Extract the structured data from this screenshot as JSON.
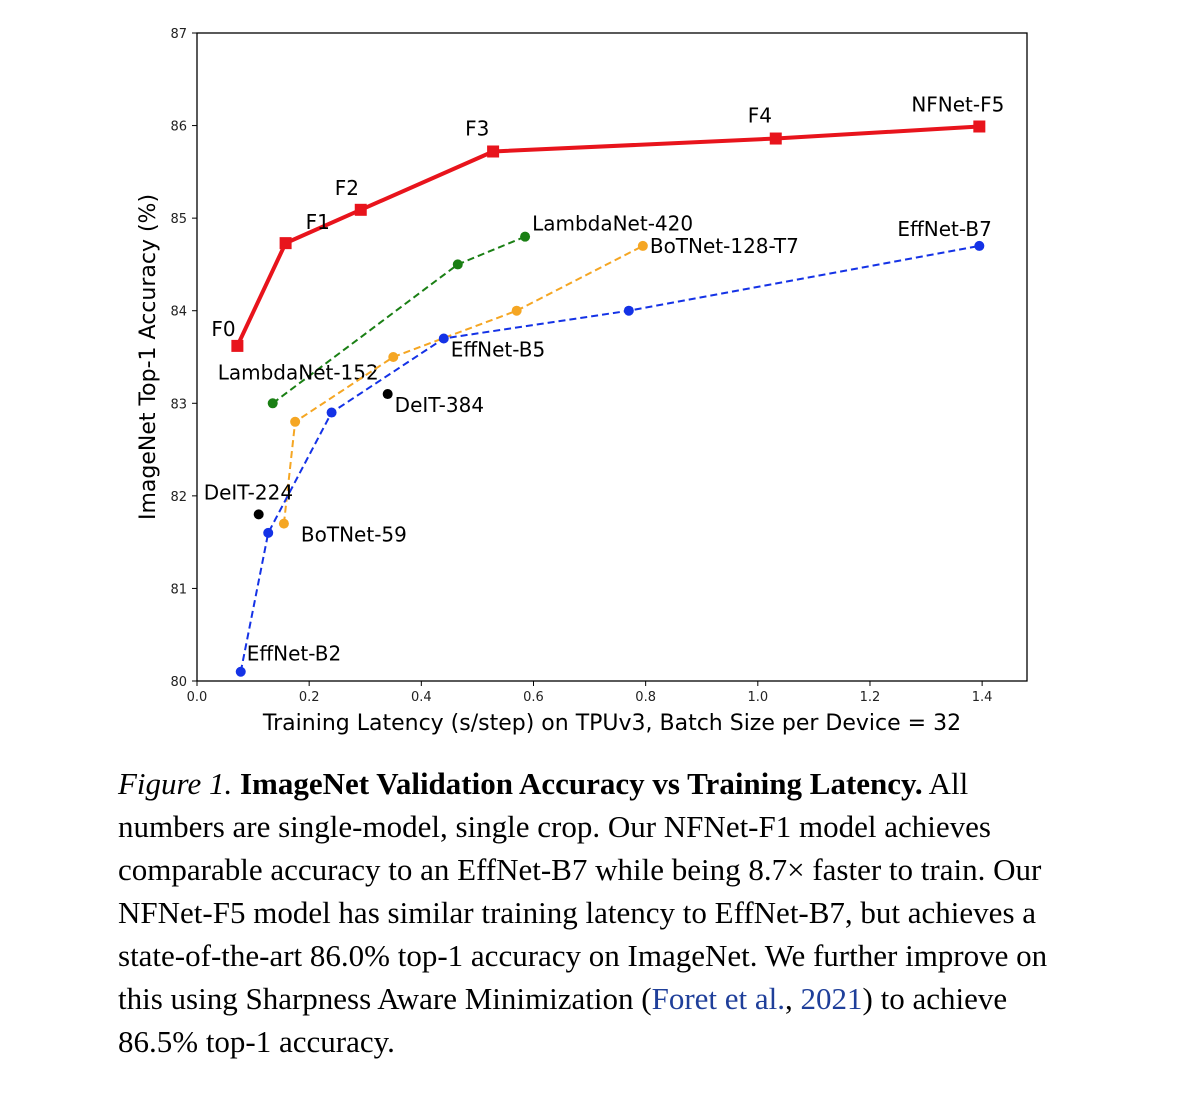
{
  "chart_data": {
    "type": "line",
    "xlabel": "Training Latency (s/step) on TPUv3, Batch Size per Device = 32",
    "ylabel": "ImageNet Top-1 Accuracy (%)",
    "xlim": [
      0.0,
      1.48
    ],
    "ylim": [
      80,
      87
    ],
    "x_ticks": [
      "0.0",
      "0.2",
      "0.4",
      "0.6",
      "0.8",
      "1.0",
      "1.2",
      "1.4"
    ],
    "y_ticks": [
      "80",
      "81",
      "82",
      "83",
      "84",
      "85",
      "86",
      "87"
    ],
    "grid": false,
    "series": [
      {
        "color": "#e8141c",
        "line_style": "solid",
        "marker": "square",
        "points": [
          {
            "x": 0.072,
            "y": 83.62,
            "label": "F0"
          },
          {
            "x": 0.158,
            "y": 84.73,
            "label": "F1"
          },
          {
            "x": 0.292,
            "y": 85.09,
            "label": "F2"
          },
          {
            "x": 0.528,
            "y": 85.72,
            "label": "F3"
          },
          {
            "x": 1.032,
            "y": 85.86,
            "label": "F4"
          },
          {
            "x": 1.395,
            "y": 85.99,
            "label": "NFNet-F5"
          }
        ]
      },
      {
        "color": "#1a7f14",
        "line_style": "dashed",
        "marker": "circle",
        "points": [
          {
            "x": 0.135,
            "y": 83.0,
            "label": "LambdaNet-152"
          },
          {
            "x": 0.465,
            "y": 84.5,
            "label": ""
          },
          {
            "x": 0.585,
            "y": 84.8,
            "label": "LambdaNet-420"
          }
        ]
      },
      {
        "color": "#f5a623",
        "line_style": "dashed",
        "marker": "circle",
        "points": [
          {
            "x": 0.155,
            "y": 81.7,
            "label": "BoTNet-59"
          },
          {
            "x": 0.175,
            "y": 82.8,
            "label": ""
          },
          {
            "x": 0.35,
            "y": 83.5,
            "label": ""
          },
          {
            "x": 0.57,
            "y": 84.0,
            "label": ""
          },
          {
            "x": 0.795,
            "y": 84.7,
            "label": "BoTNet-128-T7"
          }
        ]
      },
      {
        "color": "#1432e6",
        "line_style": "dashed",
        "marker": "circle",
        "points": [
          {
            "x": 0.078,
            "y": 80.1,
            "label": "EffNet-B2"
          },
          {
            "x": 0.127,
            "y": 81.6,
            "label": ""
          },
          {
            "x": 0.24,
            "y": 82.9,
            "label": ""
          },
          {
            "x": 0.44,
            "y": 83.7,
            "label": "EffNet-B5"
          },
          {
            "x": 0.77,
            "y": 84.0,
            "label": ""
          },
          {
            "x": 1.395,
            "y": 84.7,
            "label": "EffNet-B7"
          }
        ]
      },
      {
        "color": "#000000",
        "line_style": "none",
        "marker": "circle",
        "points": [
          {
            "x": 0.11,
            "y": 81.8,
            "label": "DeIT-224"
          },
          {
            "x": 0.34,
            "y": 83.1,
            "label": "DeIT-384"
          }
        ]
      }
    ]
  },
  "caption": {
    "figure_number": "Figure 1.",
    "title": "ImageNet Validation Accuracy vs Training Latency.",
    "text_before_citation": "All numbers are single-model, single crop. Our NFNet-F1 model achieves comparable accuracy to an EffNet-B7 while being 8.7× faster to train. Our NFNet-F5 model has similar training latency to EffNet-B7, but achieves a state-of-the-art 86.0% top-1 accuracy on ImageNet. We further improve on this using Sharpness Aware Minimization (",
    "citation_authors": "Foret et al.",
    "citation_sep": ", ",
    "citation_year": "2021",
    "text_after_citation": ") to achieve 86.5% top-1 accuracy."
  }
}
